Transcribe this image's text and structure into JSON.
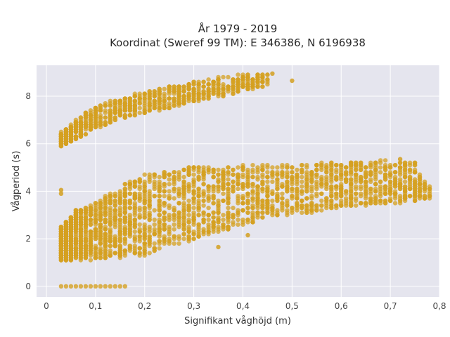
{
  "chart_data": {
    "type": "scatter",
    "title": "År 1979 - 2019",
    "subtitle": "Koordinat (Sweref 99 TM): E 346386, N 6196938",
    "xlabel": "Signifikant våghöjd (m)",
    "ylabel": "Vågperiod (s)",
    "xlim": [
      -0.02,
      0.8
    ],
    "ylim": [
      -0.45,
      9.3
    ],
    "x_ticks": [
      0,
      0.1,
      0.2,
      0.3,
      0.4,
      0.5,
      0.6,
      0.7,
      0.8
    ],
    "x_tick_labels": [
      "0",
      "0,1",
      "0,2",
      "0,3",
      "0,4",
      "0,5",
      "0,6",
      "0,7",
      "0,8"
    ],
    "y_ticks": [
      0,
      2,
      4,
      6,
      8
    ],
    "y_tick_labels": [
      "0",
      "2",
      "4",
      "6",
      "8"
    ],
    "grid": true,
    "legend": "none",
    "marker_color": "#D4A020",
    "plot_background": "#E5E5EE",
    "clusters": [
      {
        "description_key": "swell band",
        "x": [
          0.03,
          0.045,
          0.06,
          0.08,
          0.1,
          0.12,
          0.15,
          0.18,
          0.2,
          0.22,
          0.25,
          0.28,
          0.3,
          0.33,
          0.36,
          0.4,
          0.42,
          0.45
        ],
        "y_min": [
          5.9,
          6.0,
          6.2,
          6.4,
          6.6,
          6.8,
          7.0,
          7.2,
          7.3,
          7.4,
          7.5,
          7.7,
          7.8,
          7.9,
          8.0,
          8.2,
          8.3,
          8.4
        ],
        "y_max": [
          6.5,
          6.7,
          7.0,
          7.3,
          7.5,
          7.7,
          7.9,
          8.1,
          8.2,
          8.3,
          8.4,
          8.5,
          8.6,
          8.7,
          8.8,
          8.9,
          8.9,
          9.0
        ]
      },
      {
        "description_key": "wind sea band",
        "x": [
          0.03,
          0.06,
          0.1,
          0.15,
          0.2,
          0.25,
          0.3,
          0.35,
          0.4,
          0.45,
          0.5,
          0.55,
          0.6,
          0.65,
          0.7,
          0.75,
          0.78
        ],
        "y_min": [
          1.1,
          1.1,
          1.1,
          1.2,
          1.3,
          1.6,
          2.0,
          2.3,
          2.6,
          2.8,
          3.0,
          3.1,
          3.3,
          3.4,
          3.5,
          3.6,
          3.7
        ],
        "y_max": [
          2.5,
          3.2,
          3.5,
          4.2,
          4.7,
          4.9,
          5.0,
          5.0,
          5.1,
          5.1,
          5.1,
          5.2,
          5.2,
          5.3,
          5.3,
          5.2,
          4.2
        ]
      }
    ],
    "zero_period_points": {
      "x": [
        0.03,
        0.04,
        0.05,
        0.06,
        0.07,
        0.08,
        0.09,
        0.1,
        0.11,
        0.12,
        0.13,
        0.14,
        0.15,
        0.16
      ],
      "y": 0
    },
    "outliers": [
      {
        "x": 0.03,
        "y": 3.9
      },
      {
        "x": 0.03,
        "y": 4.05
      },
      {
        "x": 0.35,
        "y": 1.65
      },
      {
        "x": 0.41,
        "y": 2.15
      },
      {
        "x": 0.72,
        "y": 5.35
      },
      {
        "x": 0.75,
        "y": 5.2
      },
      {
        "x": 0.78,
        "y": 4.1
      },
      {
        "x": 0.5,
        "y": 8.65
      },
      {
        "x": 0.46,
        "y": 8.95
      }
    ]
  }
}
